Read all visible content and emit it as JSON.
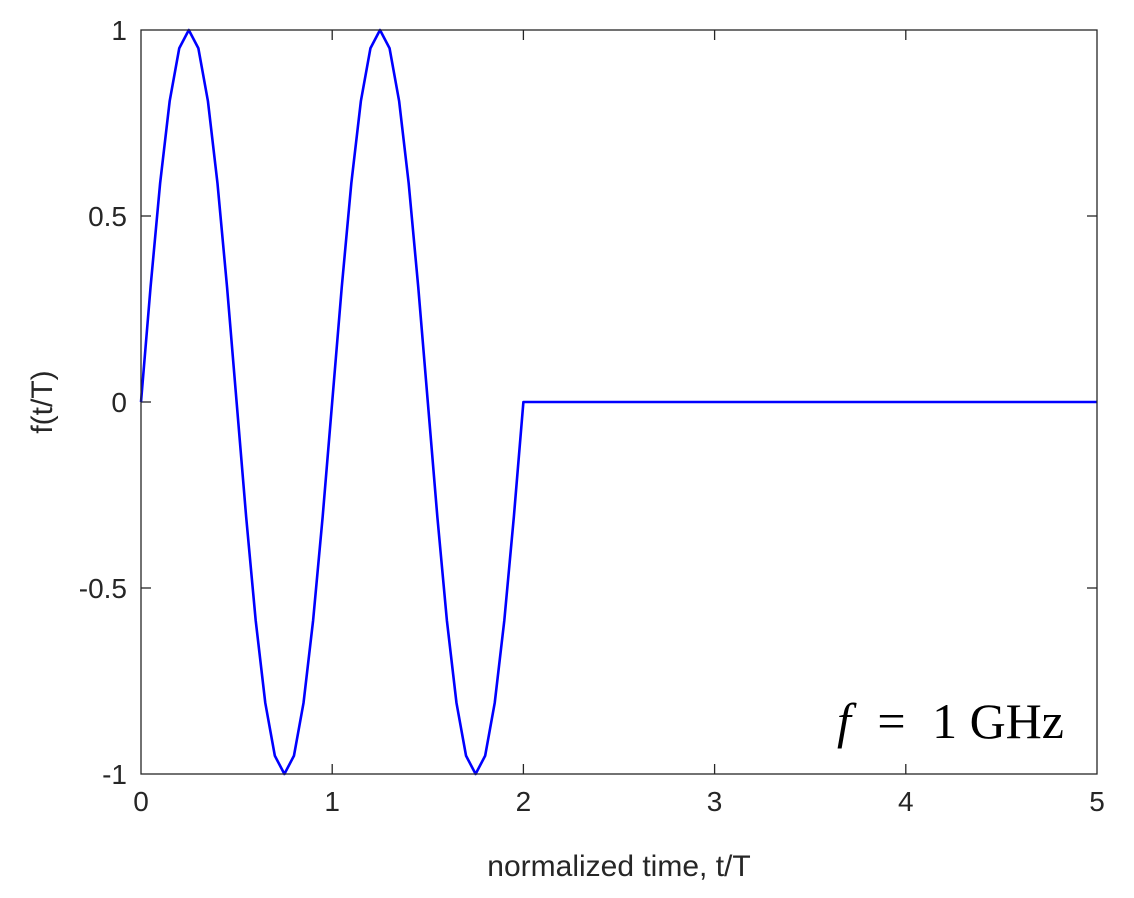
{
  "chart_data": {
    "type": "line",
    "xlabel": "normalized time, t/T",
    "ylabel": "f(t/T)",
    "xlim": [
      0,
      5
    ],
    "ylim": [
      -1,
      1
    ],
    "xticks": [
      0,
      1,
      2,
      3,
      4,
      5
    ],
    "xtick_labels": [
      "0",
      "1",
      "2",
      "3",
      "4",
      "5"
    ],
    "yticks": [
      -1,
      -0.5,
      0,
      0.5,
      1
    ],
    "ytick_labels": [
      "-1",
      "-0.5",
      "0",
      "0.5",
      "1"
    ],
    "grid": false,
    "annotation": {
      "symbol": "f",
      "operator": "=",
      "value": "1 GHz"
    },
    "series": [
      {
        "color": "#0000ff",
        "x": [
          0,
          0.05,
          0.1,
          0.15,
          0.2,
          0.25,
          0.3,
          0.35,
          0.4,
          0.45,
          0.5,
          0.55,
          0.6,
          0.65,
          0.7,
          0.75,
          0.8,
          0.85,
          0.9,
          0.95,
          1.0,
          1.05,
          1.1,
          1.15,
          1.2,
          1.25,
          1.3,
          1.35,
          1.4,
          1.45,
          1.5,
          1.55,
          1.6,
          1.65,
          1.7,
          1.75,
          1.8,
          1.85,
          1.9,
          1.95,
          2.0,
          2.5,
          3.0,
          3.5,
          4.0,
          4.5,
          5.0
        ],
        "y": [
          0,
          0.309,
          0.588,
          0.809,
          0.951,
          1.0,
          0.951,
          0.809,
          0.588,
          0.309,
          0,
          -0.309,
          -0.588,
          -0.809,
          -0.951,
          -1.0,
          -0.951,
          -0.809,
          -0.588,
          -0.309,
          0,
          0.309,
          0.588,
          0.809,
          0.951,
          1.0,
          0.951,
          0.809,
          0.588,
          0.309,
          0,
          -0.309,
          -0.588,
          -0.809,
          -0.951,
          -1.0,
          -0.951,
          -0.809,
          -0.588,
          -0.309,
          0,
          0,
          0,
          0,
          0,
          0,
          0
        ]
      }
    ]
  }
}
